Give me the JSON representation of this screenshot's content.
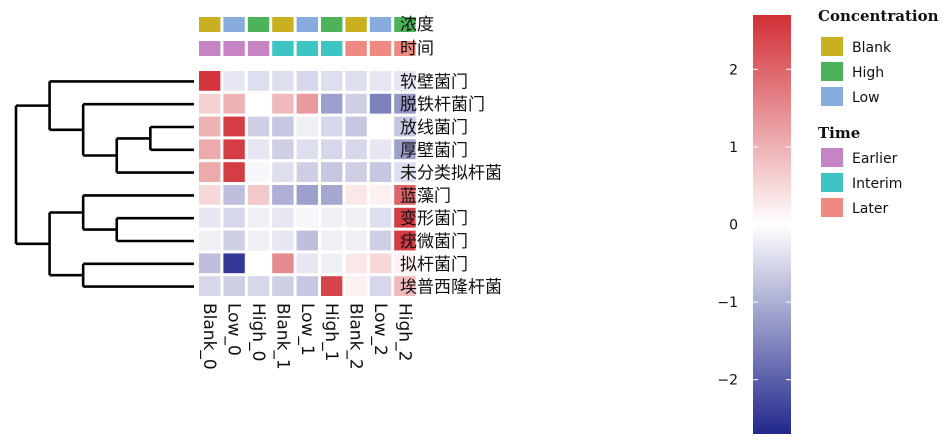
{
  "chart_data": {
    "type": "heatmap",
    "columns": [
      "Blank_0",
      "Low_0",
      "High_0",
      "Blank_1",
      "Low_1",
      "High_1",
      "Blank_2",
      "Low_2",
      "High_2"
    ],
    "rows": [
      "软壁菌门",
      "脱铁杆菌门",
      "放线菌门",
      "厚壁菌门",
      "未分类拟杆菌",
      "蓝藻门",
      "变形菌门",
      "疣微菌门",
      "拟杆菌门",
      "埃普西隆杆菌"
    ],
    "values": [
      [
        2.6,
        -0.3,
        -0.4,
        -0.4,
        -0.5,
        -0.4,
        -0.4,
        -0.3,
        -0.3
      ],
      [
        0.6,
        1.0,
        0.0,
        0.9,
        1.3,
        -1.2,
        -0.6,
        -1.6,
        -1.3
      ],
      [
        1.0,
        2.5,
        -0.6,
        -0.7,
        -0.2,
        -0.5,
        -0.7,
        0.0,
        -0.7
      ],
      [
        1.1,
        2.5,
        -0.3,
        -0.6,
        -0.4,
        -0.5,
        -0.5,
        -0.3,
        -1.2
      ],
      [
        1.1,
        2.5,
        -0.1,
        -0.4,
        -0.6,
        -0.7,
        -0.6,
        -0.7,
        -0.4
      ],
      [
        0.5,
        -0.8,
        0.7,
        -1.0,
        -1.2,
        -1.1,
        0.3,
        0.2,
        2.0
      ],
      [
        -0.3,
        -0.5,
        -0.2,
        -0.3,
        -0.1,
        -0.2,
        -0.2,
        -0.4,
        2.5
      ],
      [
        -0.2,
        -0.6,
        -0.2,
        -0.3,
        -0.8,
        -0.2,
        -0.2,
        -0.6,
        2.5
      ],
      [
        -0.8,
        -2.5,
        0.0,
        1.5,
        -0.3,
        -0.2,
        0.3,
        0.5,
        0.2
      ],
      [
        -0.5,
        -0.6,
        -0.5,
        -0.6,
        -0.7,
        2.4,
        0.2,
        -0.5,
        0.9
      ]
    ],
    "annotation_rows": [
      {
        "label": "浓度",
        "values": [
          "Blank",
          "Low",
          "High",
          "Blank",
          "Low",
          "High",
          "Blank",
          "Low",
          "High"
        ]
      },
      {
        "label": "时间",
        "values": [
          "Earlier",
          "Earlier",
          "Earlier",
          "Interim",
          "Interim",
          "Interim",
          "Later",
          "Later",
          "Later"
        ]
      }
    ],
    "annotation_colors": {
      "Blank": "#c9b020",
      "High": "#4cb35a",
      "Low": "#86acde",
      "Earlier": "#c784c4",
      "Interim": "#3fc4c4",
      "Later": "#ef8a82"
    },
    "legend": [
      {
        "title": "Concentration",
        "items": [
          "Blank",
          "High",
          "Low"
        ]
      },
      {
        "title": "Time",
        "items": [
          "Earlier",
          "Interim",
          "Later"
        ]
      }
    ],
    "colorbar": {
      "range": [
        -2.7,
        2.7
      ],
      "ticks": [
        2,
        1,
        0,
        -1,
        -2
      ],
      "tick_labels": [
        "2",
        "1",
        "0",
        "−1",
        "−2"
      ],
      "colors": {
        "low": "#22288c",
        "mid": "#ffffff",
        "high": "#d12e35"
      }
    },
    "dendrogram": "rows",
    "dendrogram_tree": [
      [
        [
          0,
          [
            1,
            [
              [
                2,
                3
              ],
              4
            ]
          ]
        ],
        [
          [
            5,
            [
              6,
              7
            ]
          ],
          [
            8,
            9
          ]
        ]
      ]
    ]
  }
}
